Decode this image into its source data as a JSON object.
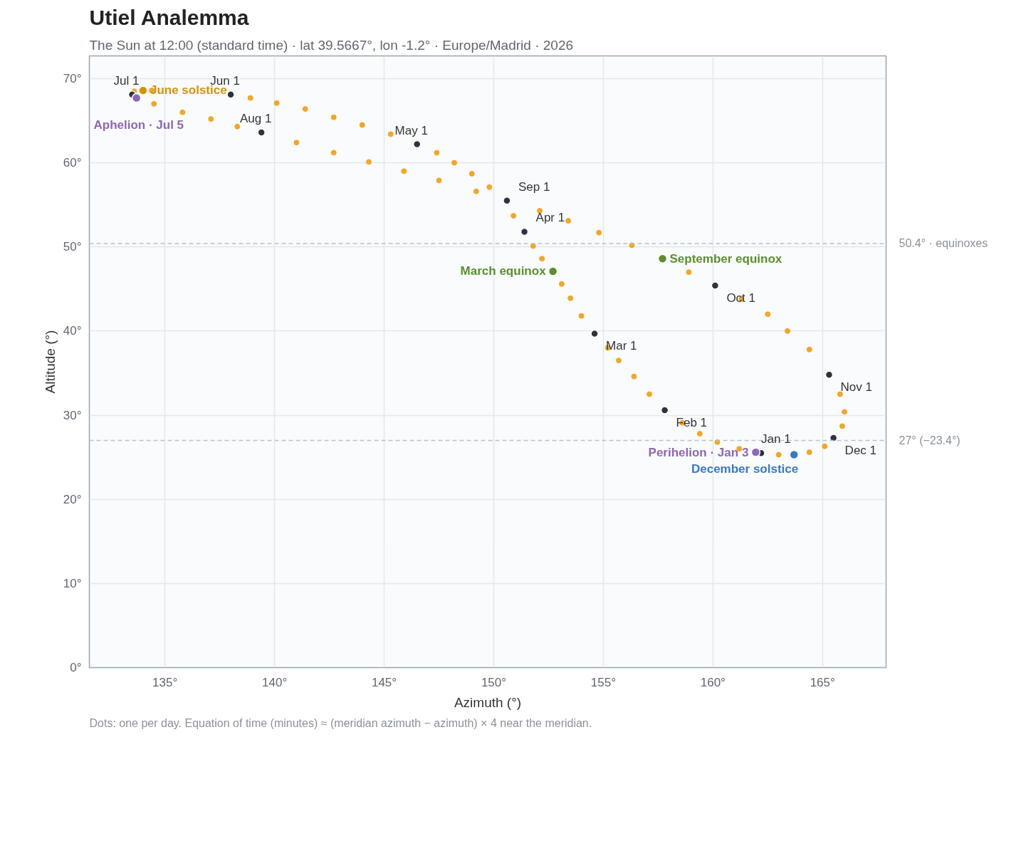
{
  "chart_data": {
    "type": "scatter",
    "title": "Utiel Analemma",
    "subtitle": "The Sun at 12:00 (standard time) · lat 39.5667°, lon -1.2° · Europe/Madrid · 2026",
    "xlabel": "Azimuth (°)",
    "ylabel": "Altitude (°)",
    "xlim": [
      131.55,
      167.9
    ],
    "ylim": [
      0,
      72.7
    ],
    "xticks": [
      {
        "value": 135,
        "label": "135°"
      },
      {
        "value": 140,
        "label": "140°"
      },
      {
        "value": 145,
        "label": "145°"
      },
      {
        "value": 150,
        "label": "150°"
      },
      {
        "value": 155,
        "label": "155°"
      },
      {
        "value": 160,
        "label": "160°"
      },
      {
        "value": 165,
        "label": "165°"
      }
    ],
    "yticks": [
      {
        "value": 0,
        "label": "0°"
      },
      {
        "value": 10,
        "label": "10°"
      },
      {
        "value": 20,
        "label": "20°"
      },
      {
        "value": 30,
        "label": "30°"
      },
      {
        "value": 40,
        "label": "40°"
      },
      {
        "value": 50,
        "label": "50°"
      },
      {
        "value": 60,
        "label": "60°"
      },
      {
        "value": 70,
        "label": "70°"
      }
    ],
    "grid": true,
    "marker": "circle",
    "series": [
      {
        "color": "#f5a623",
        "x": [
          161.2,
          160.2,
          159.4,
          158.6,
          157.1,
          156.4,
          155.7,
          155.2,
          154.0,
          153.5,
          153.1,
          152.2,
          151.8,
          150.9,
          149.8,
          149.0,
          148.2,
          147.4,
          145.3,
          144.0,
          142.7,
          141.4,
          140.1,
          138.9,
          134.4,
          133.6,
          134.5,
          135.8,
          137.1,
          138.3,
          141.0,
          142.7,
          144.3,
          145.9,
          147.5,
          149.2,
          152.1,
          153.4,
          154.8,
          156.3,
          158.9,
          161.3,
          162.5,
          163.4,
          164.4,
          165.8,
          166.0,
          165.9,
          165.1,
          164.4,
          163.0
        ],
        "values": [
          26.0,
          26.8,
          27.8,
          29.1,
          32.5,
          34.6,
          36.5,
          38.0,
          41.8,
          43.9,
          45.6,
          48.6,
          50.1,
          53.7,
          57.1,
          58.7,
          60.0,
          61.2,
          63.4,
          64.5,
          65.4,
          66.4,
          67.1,
          67.7,
          68.6,
          68.5,
          67.0,
          66.0,
          65.2,
          64.3,
          62.4,
          61.2,
          60.1,
          59.0,
          57.9,
          56.6,
          54.3,
          53.1,
          51.7,
          50.2,
          47.0,
          43.8,
          42.0,
          40.0,
          37.8,
          32.5,
          30.4,
          28.7,
          26.3,
          25.6,
          25.3
        ]
      },
      {
        "color": "#2d3340",
        "x": [
          162.2,
          157.8,
          154.6,
          151.4,
          146.5,
          138.0,
          133.5,
          139.4,
          150.6,
          160.1,
          165.3,
          165.5
        ],
        "values": [
          25.5,
          30.6,
          39.7,
          51.8,
          62.2,
          68.1,
          68.1,
          63.6,
          55.5,
          45.4,
          34.8,
          27.3
        ]
      },
      {
        "name": "Aphelion · Jul 5",
        "color": "#8e67b4",
        "x": [
          133.7
        ],
        "values": [
          67.7
        ]
      },
      {
        "name": "June solstice",
        "color": "#d4920f",
        "x": [
          134.0
        ],
        "values": [
          68.6
        ]
      },
      {
        "name": "March equinox",
        "color": "#5a8f2e",
        "x": [
          152.7
        ],
        "values": [
          47.1
        ]
      },
      {
        "name": "September equinox",
        "color": "#5a8f2e",
        "x": [
          157.7
        ],
        "values": [
          48.6
        ]
      },
      {
        "name": "Perihelion · Jan 3",
        "color": "#8e67b4",
        "x": [
          161.95
        ],
        "values": [
          25.6
        ]
      },
      {
        "name": "December solstice",
        "color": "#3a78c2",
        "x": [
          163.7
        ],
        "values": [
          25.3
        ]
      }
    ],
    "ref_lines": [
      {
        "axis": "y",
        "value": 50.4,
        "label": "50.4° · equinoxes",
        "color": "#b8c2cc",
        "line_style": "dashed"
      },
      {
        "axis": "y",
        "value": 27,
        "label": "27° (−23.4°)",
        "color": "#b8c2cc",
        "line_style": "dashed"
      }
    ],
    "annotations": [
      {
        "text": "Jan 1",
        "x": 162.2,
        "y": 25.5
      },
      {
        "text": "Feb 1",
        "x": 157.8,
        "y": 30.6
      },
      {
        "text": "Mar 1",
        "x": 154.6,
        "y": 39.7
      },
      {
        "text": "Apr 1",
        "x": 151.4,
        "y": 51.8
      },
      {
        "text": "May 1",
        "x": 146.5,
        "y": 62.2
      },
      {
        "text": "Jun 1",
        "x": 138.0,
        "y": 68.1
      },
      {
        "text": "Jul 1",
        "x": 133.5,
        "y": 68.1
      },
      {
        "text": "Aug 1",
        "x": 139.4,
        "y": 63.6
      },
      {
        "text": "Sep 1",
        "x": 150.6,
        "y": 55.5
      },
      {
        "text": "Oct 1",
        "x": 160.1,
        "y": 45.4
      },
      {
        "text": "Nov 1",
        "x": 165.3,
        "y": 34.8
      },
      {
        "text": "Dec 1",
        "x": 165.5,
        "y": 27.3
      },
      "Dots: one per day. Equation of time (minutes) ≈ (meridian azimuth − azimuth) × 4 near the meridian."
    ]
  }
}
